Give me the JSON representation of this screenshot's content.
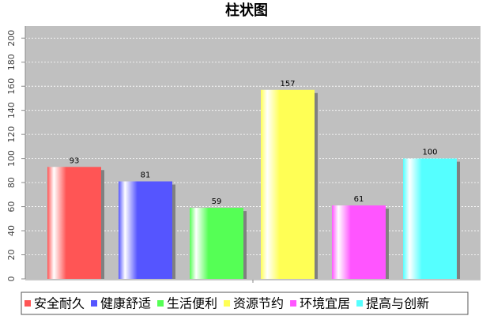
{
  "chart_data": {
    "type": "bar",
    "title": "柱状图",
    "categories": [
      null
    ],
    "series": [
      {
        "name": "安全耐久",
        "color": "#ff5555",
        "values": [
          93
        ]
      },
      {
        "name": "健康舒适",
        "color": "#5555ff",
        "values": [
          81
        ]
      },
      {
        "name": "生活便利",
        "color": "#55ff55",
        "values": [
          59
        ]
      },
      {
        "name": "资源节约",
        "color": "#ffff55",
        "values": [
          157
        ]
      },
      {
        "name": "环境宜居",
        "color": "#ff55ff",
        "values": [
          61
        ]
      },
      {
        "name": "提高与创新",
        "color": "#55ffff",
        "values": [
          100
        ]
      }
    ],
    "ylim": [
      0,
      210
    ],
    "yticks": [
      0,
      20,
      40,
      60,
      80,
      100,
      120,
      140,
      160,
      180,
      200
    ],
    "grid": true,
    "legend": "bottom"
  }
}
